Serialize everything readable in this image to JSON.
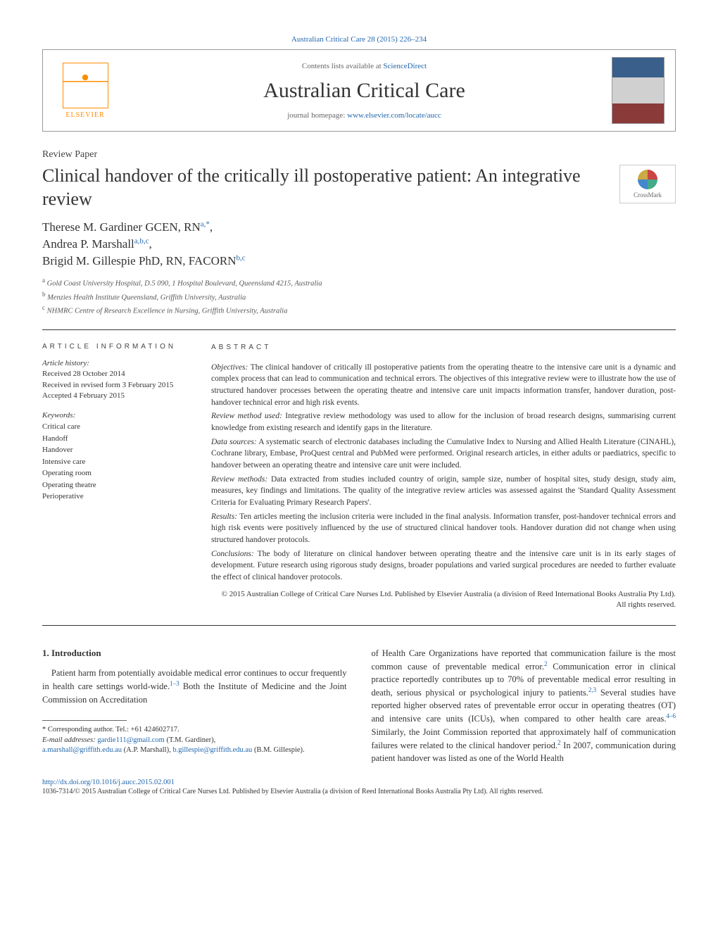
{
  "header": {
    "top_link": "Australian Critical Care 28 (2015) 226–234",
    "contents_prefix": "Contents lists available at ",
    "contents_link": "ScienceDirect",
    "journal_name": "Australian Critical Care",
    "homepage_prefix": "journal homepage: ",
    "homepage_url": "www.elsevier.com/locate/aucc",
    "elsevier": "ELSEVIER",
    "crossmark": "CrossMark"
  },
  "article": {
    "type": "Review Paper",
    "title": "Clinical handover of the critically ill postoperative patient: An integrative review",
    "authors_html": [
      {
        "name": "Therese M. Gardiner GCEN, RN",
        "sup": "a,*",
        "sep": ","
      },
      {
        "name": "Andrea P. Marshall",
        "sup": "a,b,c",
        "sep": ","
      },
      {
        "name": "Brigid M. Gillespie PhD, RN, FACORN",
        "sup": "b,c",
        "sep": ""
      }
    ],
    "affiliations": [
      {
        "sup": "a",
        "text": "Gold Coast University Hospital, D.5 090, 1 Hospital Boulevard, Queensland 4215, Australia"
      },
      {
        "sup": "b",
        "text": "Menzies Health Institute Queensland, Griffith University, Australia"
      },
      {
        "sup": "c",
        "text": "NHMRC Centre of Research Excellence in Nursing, Griffith University, Australia"
      }
    ]
  },
  "info": {
    "heading": "article information",
    "history_label": "Article history:",
    "history": [
      "Received 28 October 2014",
      "Received in revised form 3 February 2015",
      "Accepted 4 February 2015"
    ],
    "keywords_label": "Keywords:",
    "keywords": [
      "Critical care",
      "Handoff",
      "Handover",
      "Intensive care",
      "Operating room",
      "Operating theatre",
      "Perioperative"
    ]
  },
  "abstract": {
    "heading": "abstract",
    "sections": [
      {
        "label": "Objectives:",
        "text": "The clinical handover of critically ill postoperative patients from the operating theatre to the intensive care unit is a dynamic and complex process that can lead to communication and technical errors. The objectives of this integrative review were to illustrate how the use of structured handover processes between the operating theatre and intensive care unit impacts information transfer, handover duration, post-handover technical error and high risk events."
      },
      {
        "label": "Review method used:",
        "text": "Integrative review methodology was used to allow for the inclusion of broad research designs, summarising current knowledge from existing research and identify gaps in the literature."
      },
      {
        "label": "Data sources:",
        "text": "A systematic search of electronic databases including the Cumulative Index to Nursing and Allied Health Literature (CINAHL), Cochrane library, Embase, ProQuest central and PubMed were performed. Original research articles, in either adults or paediatrics, specific to handover between an operating theatre and intensive care unit were included."
      },
      {
        "label": "Review methods:",
        "text": "Data extracted from studies included country of origin, sample size, number of hospital sites, study design, study aim, measures, key findings and limitations. The quality of the integrative review articles was assessed against the 'Standard Quality Assessment Criteria for Evaluating Primary Research Papers'."
      },
      {
        "label": "Results:",
        "text": "Ten articles meeting the inclusion criteria were included in the final analysis. Information transfer, post-handover technical errors and high risk events were positively influenced by the use of structured clinical handover tools. Handover duration did not change when using structured handover protocols."
      },
      {
        "label": "Conclusions:",
        "text": "The body of literature on clinical handover between operating theatre and the intensive care unit is in its early stages of development. Future research using rigorous study designs, broader populations and varied surgical procedures are needed to further evaluate the effect of clinical handover protocols."
      }
    ],
    "copyright": "© 2015 Australian College of Critical Care Nurses Ltd. Published by Elsevier Australia (a division of Reed International Books Australia Pty Ltd). All rights reserved."
  },
  "body": {
    "intro_heading": "1. Introduction",
    "col1_text": "Patient harm from potentially avoidable medical error continues to occur frequently in health care settings world-wide.",
    "col1_sup1": "1–3",
    "col1_text2": " Both the Institute of Medicine and the Joint Commission on Accreditation",
    "col2_text": "of Health Care Organizations have reported that communication failure is the most common cause of preventable medical error.",
    "col2_sup1": "2",
    "col2_text2": " Communication error in clinical practice reportedly contributes up to 70% of preventable medical error resulting in death, serious physical or psychological injury to patients.",
    "col2_sup2": "2,3",
    "col2_text3": " Several studies have reported higher observed rates of preventable error occur in operating theatres (OT) and intensive care units (ICUs), when compared to other health care areas.",
    "col2_sup3": "4–6",
    "col2_text4": " Similarly, the Joint Commission reported that approximately half of communication failures were related to the clinical handover period.",
    "col2_sup4": "2",
    "col2_text5": " In 2007, communication during patient handover was listed as one of the World Health"
  },
  "footnotes": {
    "corresponding": "* Corresponding author. Tel.: +61 424602717.",
    "email_label": "E-mail addresses: ",
    "emails": [
      {
        "addr": "gardie111@gmail.com",
        "person": "(T.M. Gardiner)"
      },
      {
        "addr": "a.marshall@griffith.edu.au",
        "person": "(A.P. Marshall)"
      },
      {
        "addr": "b.gillespie@griffith.edu.au",
        "person": "(B.M. Gillespie)"
      }
    ]
  },
  "footer": {
    "doi": "http://dx.doi.org/10.1016/j.aucc.2015.02.001",
    "issn_copyright": "1036-7314/© 2015 Australian College of Critical Care Nurses Ltd. Published by Elsevier Australia (a division of Reed International Books Australia Pty Ltd). All rights reserved."
  },
  "colors": {
    "link": "#2166ac",
    "elsevier": "#ff8c00",
    "text": "#333333",
    "border": "#999999"
  }
}
